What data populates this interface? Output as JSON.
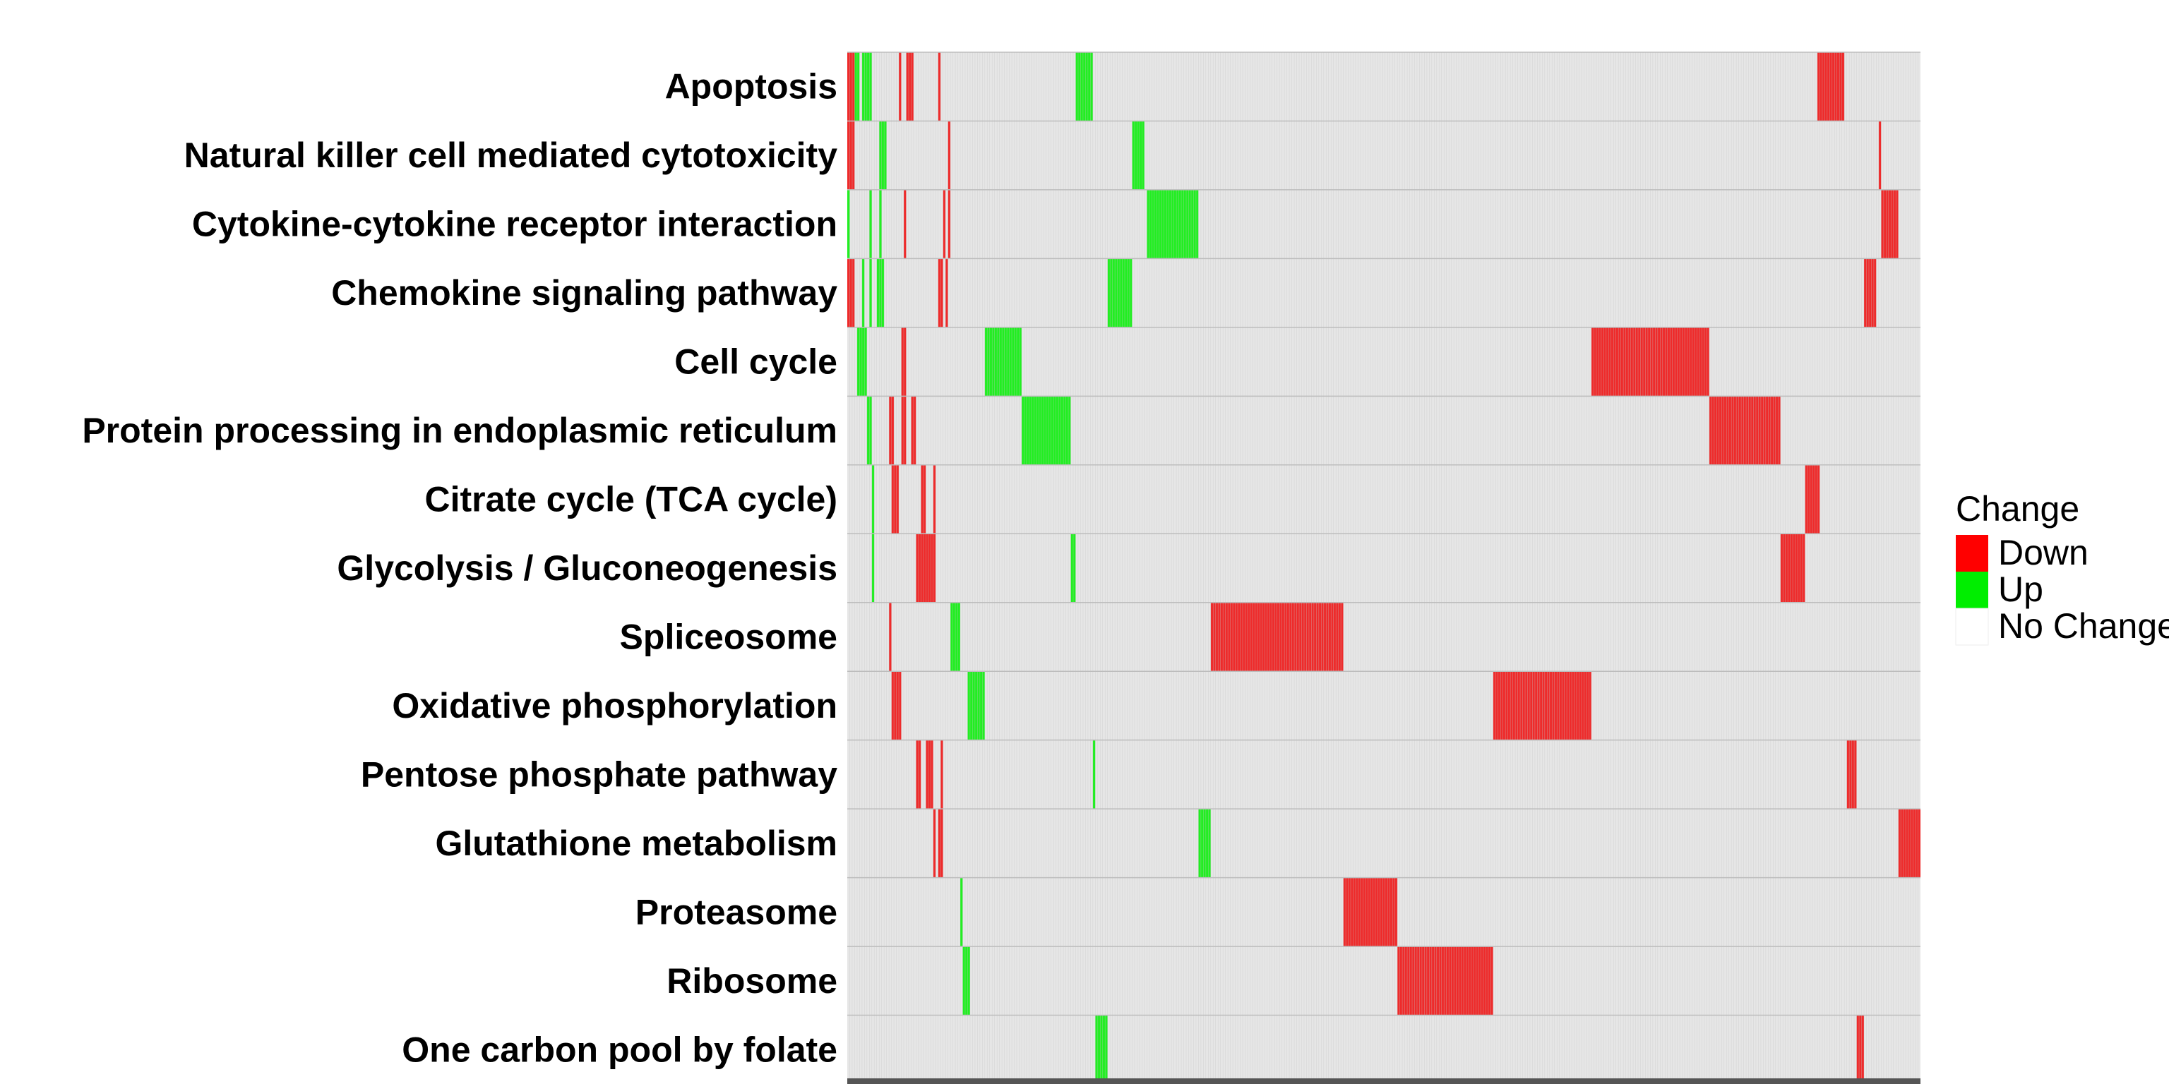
{
  "chart_data": {
    "type": "heatmap",
    "title": "",
    "xlabel": "",
    "ylabel": "",
    "rows": [
      "Apoptosis",
      "Natural killer cell mediated cytotoxicity",
      "Cytokine-cytokine receptor interaction",
      "Chemokine signaling pathway",
      "Cell cycle",
      "Protein processing in endoplasmic reticulum",
      "Citrate cycle (TCA cycle)",
      "Glycolysis / Gluconeogenesis",
      "Spliceosome",
      "Oxidative phosphorylation",
      "Pentose phosphate pathway",
      "Glutathione metabolism",
      "Proteasome",
      "Ribosome",
      "One carbon pool by folate"
    ],
    "n_columns": 437,
    "cells": [
      [
        [
          0,
          3,
          "Down"
        ],
        [
          3,
          5,
          "Up"
        ],
        [
          6,
          7,
          "Up"
        ],
        [
          7,
          10,
          "Up"
        ],
        [
          21,
          22,
          "Down"
        ],
        [
          24,
          27,
          "Down"
        ],
        [
          37,
          38,
          "Down"
        ],
        [
          93,
          100,
          "Up"
        ],
        [
          395,
          406,
          "Down"
        ]
      ],
      [
        [
          0,
          3,
          "Down"
        ],
        [
          13,
          16,
          "Up"
        ],
        [
          41,
          42,
          "Down"
        ],
        [
          116,
          121,
          "Up"
        ],
        [
          420,
          421,
          "Down"
        ]
      ],
      [
        [
          0,
          1,
          "Up"
        ],
        [
          9,
          10,
          "Up"
        ],
        [
          13,
          14,
          "Up"
        ],
        [
          23,
          24,
          "Down"
        ],
        [
          39,
          40,
          "Down"
        ],
        [
          41,
          42,
          "Down"
        ],
        [
          122,
          143,
          "Up"
        ],
        [
          421,
          428,
          "Down"
        ]
      ],
      [
        [
          0,
          3,
          "Down"
        ],
        [
          6,
          7,
          "Up"
        ],
        [
          9,
          10,
          "Up"
        ],
        [
          12,
          15,
          "Up"
        ],
        [
          37,
          39,
          "Down"
        ],
        [
          40,
          41,
          "Down"
        ],
        [
          106,
          116,
          "Up"
        ],
        [
          414,
          419,
          "Down"
        ]
      ],
      [
        [
          4,
          8,
          "Up"
        ],
        [
          22,
          24,
          "Down"
        ],
        [
          56,
          71,
          "Up"
        ],
        [
          303,
          351,
          "Down"
        ]
      ],
      [
        [
          8,
          10,
          "Up"
        ],
        [
          17,
          19,
          "Down"
        ],
        [
          22,
          24,
          "Down"
        ],
        [
          26,
          28,
          "Down"
        ],
        [
          71,
          91,
          "Up"
        ],
        [
          351,
          380,
          "Down"
        ]
      ],
      [
        [
          10,
          11,
          "Up"
        ],
        [
          18,
          21,
          "Down"
        ],
        [
          30,
          32,
          "Down"
        ],
        [
          35,
          36,
          "Down"
        ],
        [
          390,
          396,
          "Down"
        ]
      ],
      [
        [
          10,
          11,
          "Up"
        ],
        [
          28,
          36,
          "Down"
        ],
        [
          91,
          93,
          "Up"
        ],
        [
          380,
          390,
          "Down"
        ]
      ],
      [
        [
          17,
          18,
          "Down"
        ],
        [
          42,
          46,
          "Up"
        ],
        [
          148,
          202,
          "Down"
        ]
      ],
      [
        [
          18,
          22,
          "Down"
        ],
        [
          49,
          56,
          "Up"
        ],
        [
          263,
          303,
          "Down"
        ]
      ],
      [
        [
          28,
          30,
          "Down"
        ],
        [
          32,
          35,
          "Down"
        ],
        [
          38,
          39,
          "Down"
        ],
        [
          100,
          101,
          "Up"
        ],
        [
          407,
          411,
          "Down"
        ]
      ],
      [
        [
          35,
          36,
          "Down"
        ],
        [
          37,
          39,
          "Down"
        ],
        [
          143,
          148,
          "Up"
        ],
        [
          428,
          437,
          "Down"
        ]
      ],
      [
        [
          46,
          47,
          "Up"
        ],
        [
          202,
          224,
          "Down"
        ]
      ],
      [
        [
          47,
          50,
          "Up"
        ],
        [
          224,
          263,
          "Down"
        ]
      ],
      [
        [
          101,
          106,
          "Up"
        ],
        [
          411,
          414,
          "Down"
        ]
      ]
    ],
    "legend": {
      "title": "Change",
      "placement": "right",
      "entries": [
        {
          "label": "Down",
          "color": "#ff0000"
        },
        {
          "label": "Up",
          "color": "#00ee00"
        },
        {
          "label": "No Change",
          "color": "#ffffff"
        }
      ]
    },
    "colors": {
      "Down": "#ee2b2b",
      "Up": "#22ee22",
      "No Change": "#e6e6e6",
      "cell_edge": "#c8c8c8",
      "row_sep": "#bdbdbd",
      "bottom_bar": "#555555"
    },
    "grid": true
  }
}
